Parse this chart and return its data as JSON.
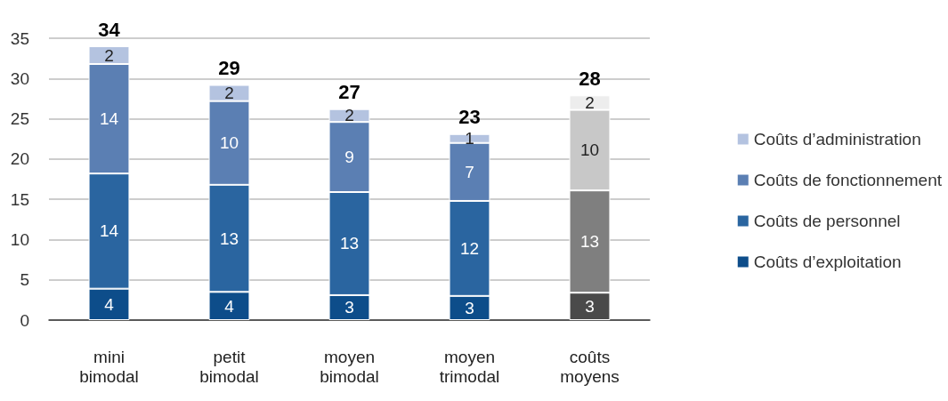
{
  "chart_data": {
    "type": "bar",
    "stacked": true,
    "categories": [
      "mini\nbimodal",
      "petit\nbimodal",
      "moyen\nbimodal",
      "moyen\ntrimodal",
      "coûts\nmoyens"
    ],
    "series": [
      {
        "name": "Coûts d’exploitation",
        "color": "#0d4d8a",
        "colors": [
          "#0d4d8a",
          "#0d4d8a",
          "#0d4d8a",
          "#0d4d8a",
          "#4a4a4a"
        ],
        "values": [
          3.9,
          3.5,
          3.1,
          3.0,
          3.4
        ],
        "value_labels": [
          "4",
          "4",
          "3",
          "3",
          "3"
        ]
      },
      {
        "name": "Coûts de personnel",
        "color": "#2a65a0",
        "colors": [
          "#2a65a0",
          "#2a65a0",
          "#2a65a0",
          "#2a65a0",
          "#7f7f7f"
        ],
        "values": [
          14.3,
          13.3,
          12.8,
          11.8,
          12.7
        ],
        "value_labels": [
          "14",
          "13",
          "13",
          "12",
          "13"
        ]
      },
      {
        "name": "Coûts de fonctionnement",
        "color": "#5b7fb3",
        "colors": [
          "#5b7fb3",
          "#5b7fb3",
          "#5b7fb3",
          "#5b7fb3",
          "#c8c8c8"
        ],
        "values": [
          13.6,
          10.4,
          8.7,
          7.2,
          10.0
        ],
        "value_labels": [
          "14",
          "10",
          "9",
          "7",
          "10"
        ]
      },
      {
        "name": "Coûts d’administration",
        "color": "#b4c3e0",
        "colors": [
          "#b4c3e0",
          "#b4c3e0",
          "#b4c3e0",
          "#b4c3e0",
          "#ededed"
        ],
        "values": [
          2.2,
          2.0,
          1.6,
          1.1,
          1.8
        ],
        "value_labels": [
          "2",
          "2",
          "2",
          "1",
          "2"
        ]
      }
    ],
    "totals": [
      "34",
      "29",
      "27",
      "23",
      "28"
    ],
    "ylim": [
      0,
      35
    ],
    "yticks": [
      0,
      5,
      10,
      15,
      20,
      25,
      30,
      35
    ],
    "grid": "y",
    "legend": "right"
  }
}
